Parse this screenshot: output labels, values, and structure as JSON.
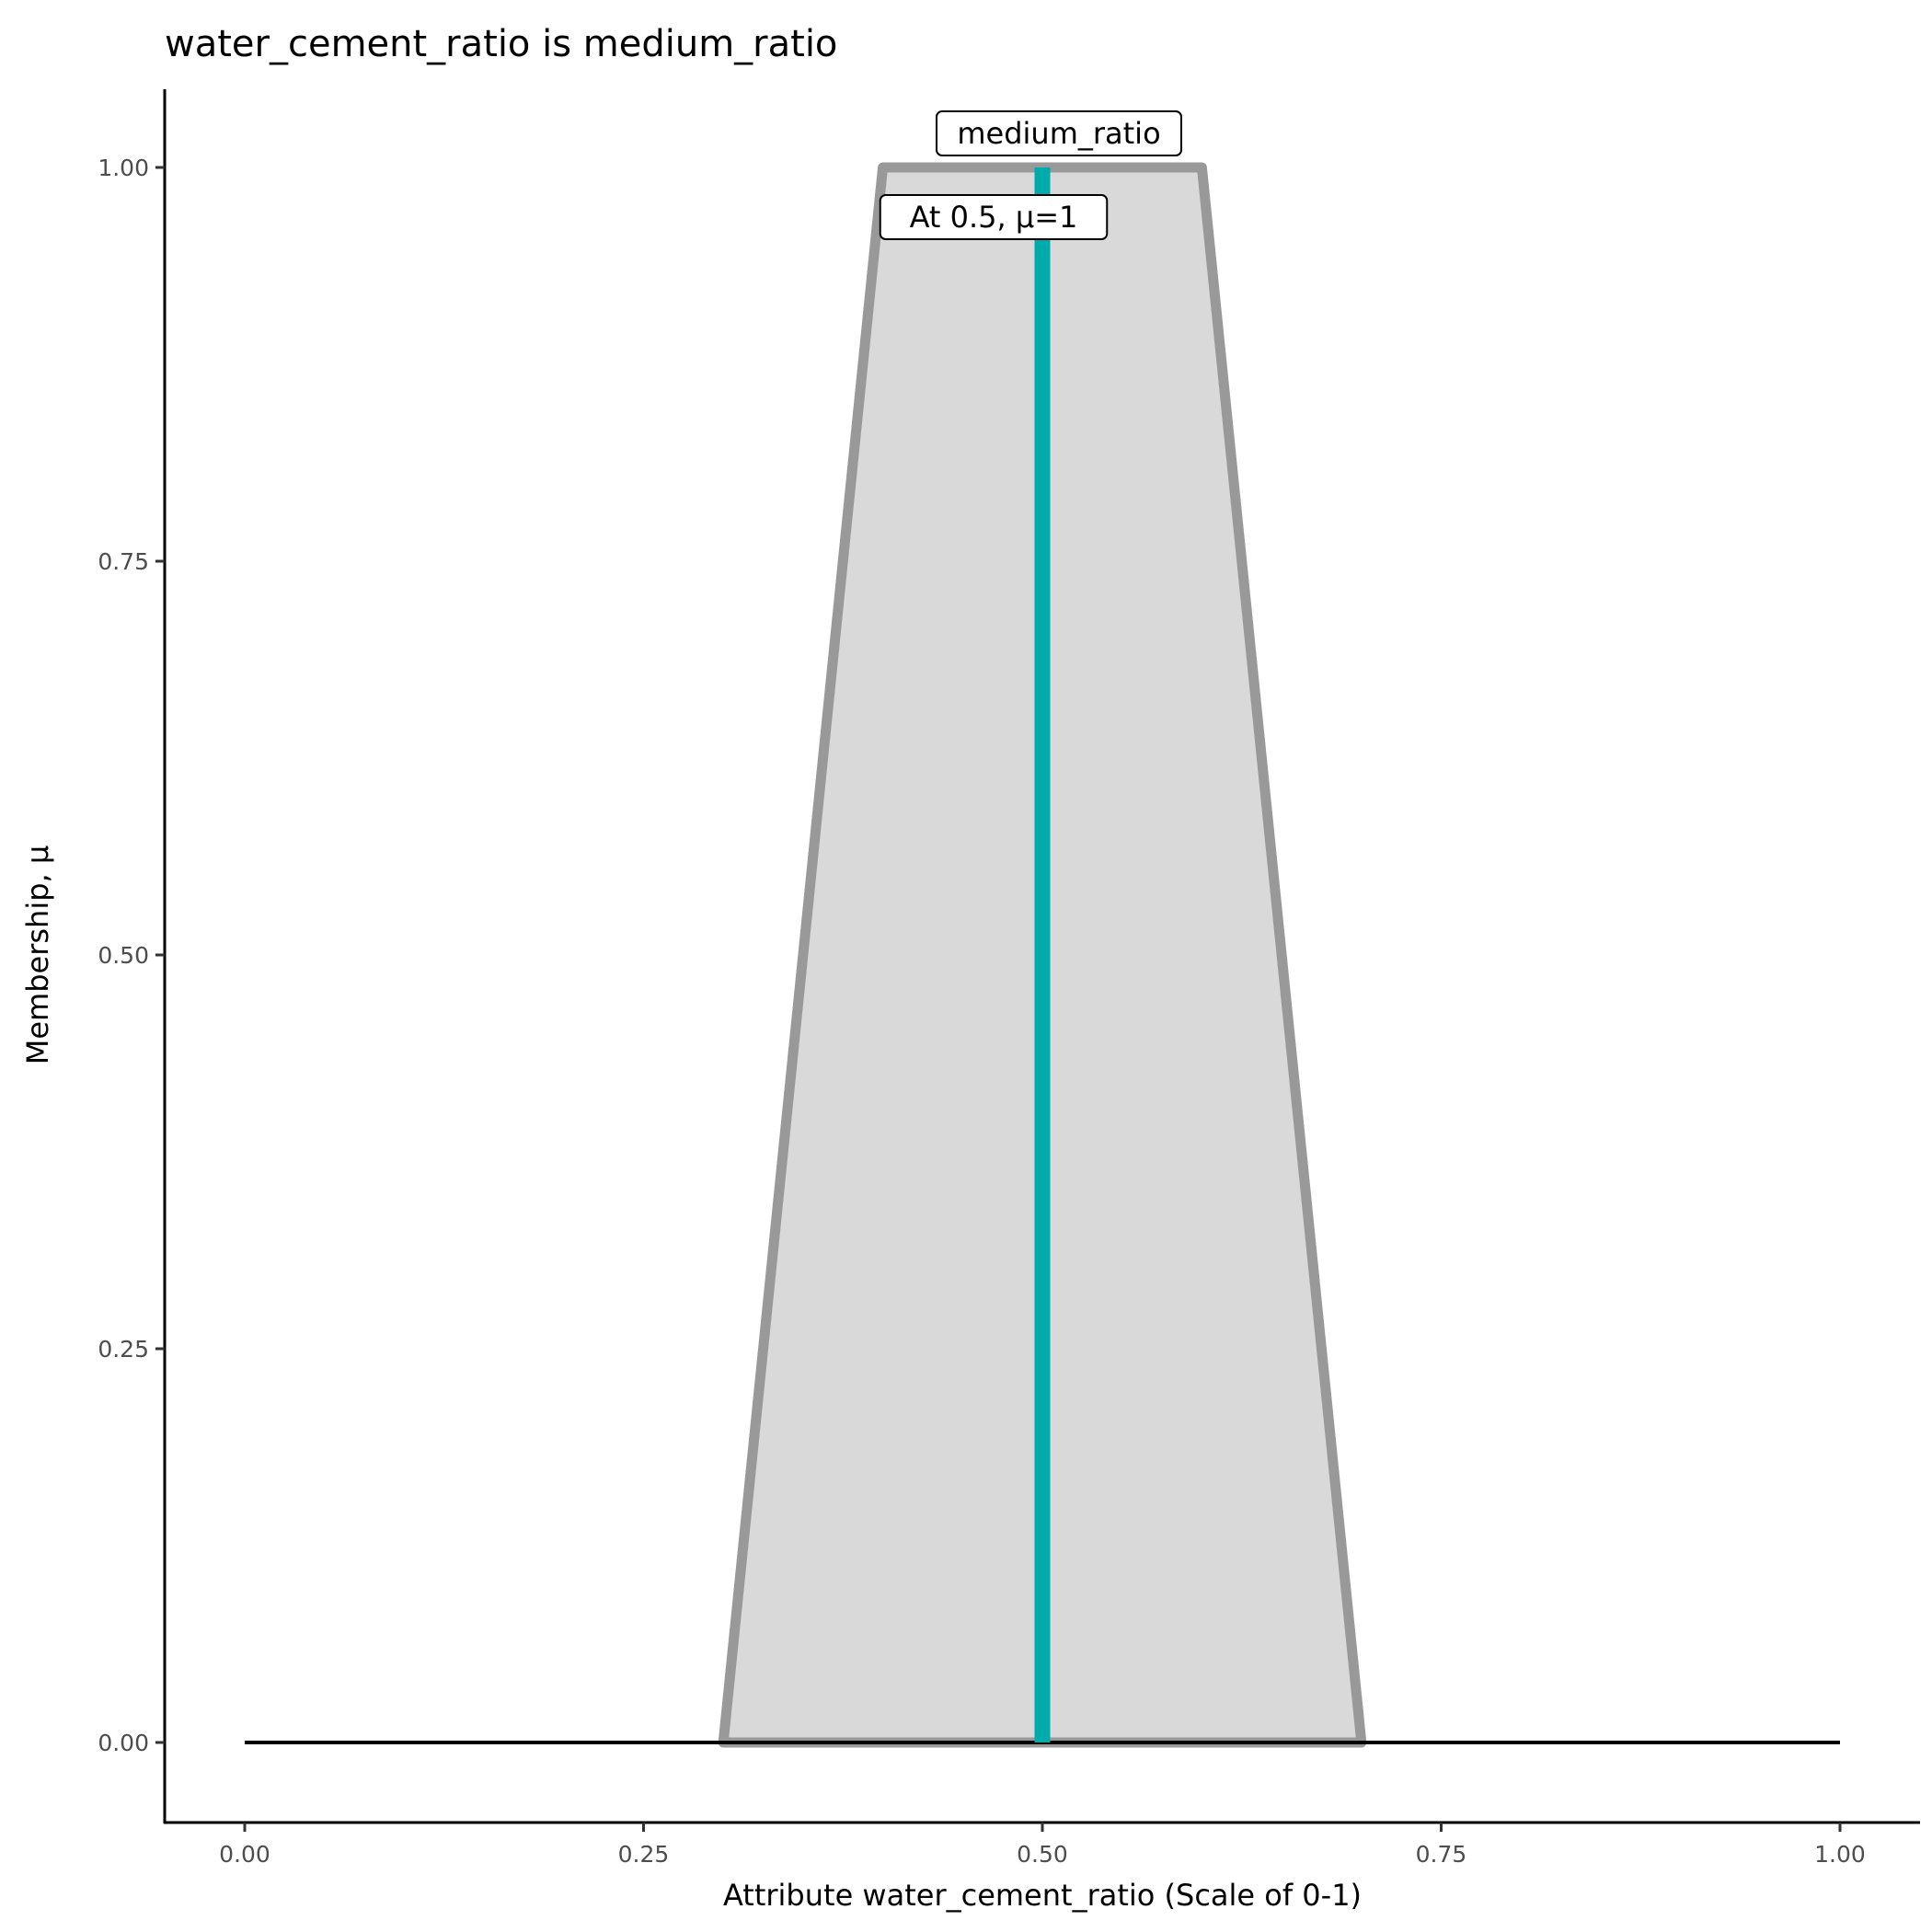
{
  "chart_data": {
    "type": "area",
    "title": "water_cement_ratio is medium_ratio",
    "xlabel": "Attribute water_cement_ratio (Scale of 0-1)",
    "ylabel": "Membership, μ",
    "xlim": [
      0,
      1
    ],
    "ylim": [
      0,
      1
    ],
    "x_ticks": [
      "0.00",
      "0.25",
      "0.50",
      "0.75",
      "1.00"
    ],
    "y_ticks": [
      "0.00",
      "0.25",
      "0.50",
      "0.75",
      "1.00"
    ],
    "grid": false,
    "membership_function": {
      "x": [
        0.3,
        0.4,
        0.6,
        0.7
      ],
      "y": [
        0,
        1,
        1,
        0
      ],
      "label": "medium_ratio"
    },
    "baseline": {
      "x": [
        0,
        1
      ],
      "y": [
        0,
        0
      ]
    },
    "marker": {
      "x": 0.5,
      "mu": 1,
      "label": "At 0.5, μ=1"
    },
    "colors": {
      "fill": "#d9d9d9",
      "outline": "#999999",
      "marker": "#00abab",
      "baseline": "#000000"
    }
  }
}
